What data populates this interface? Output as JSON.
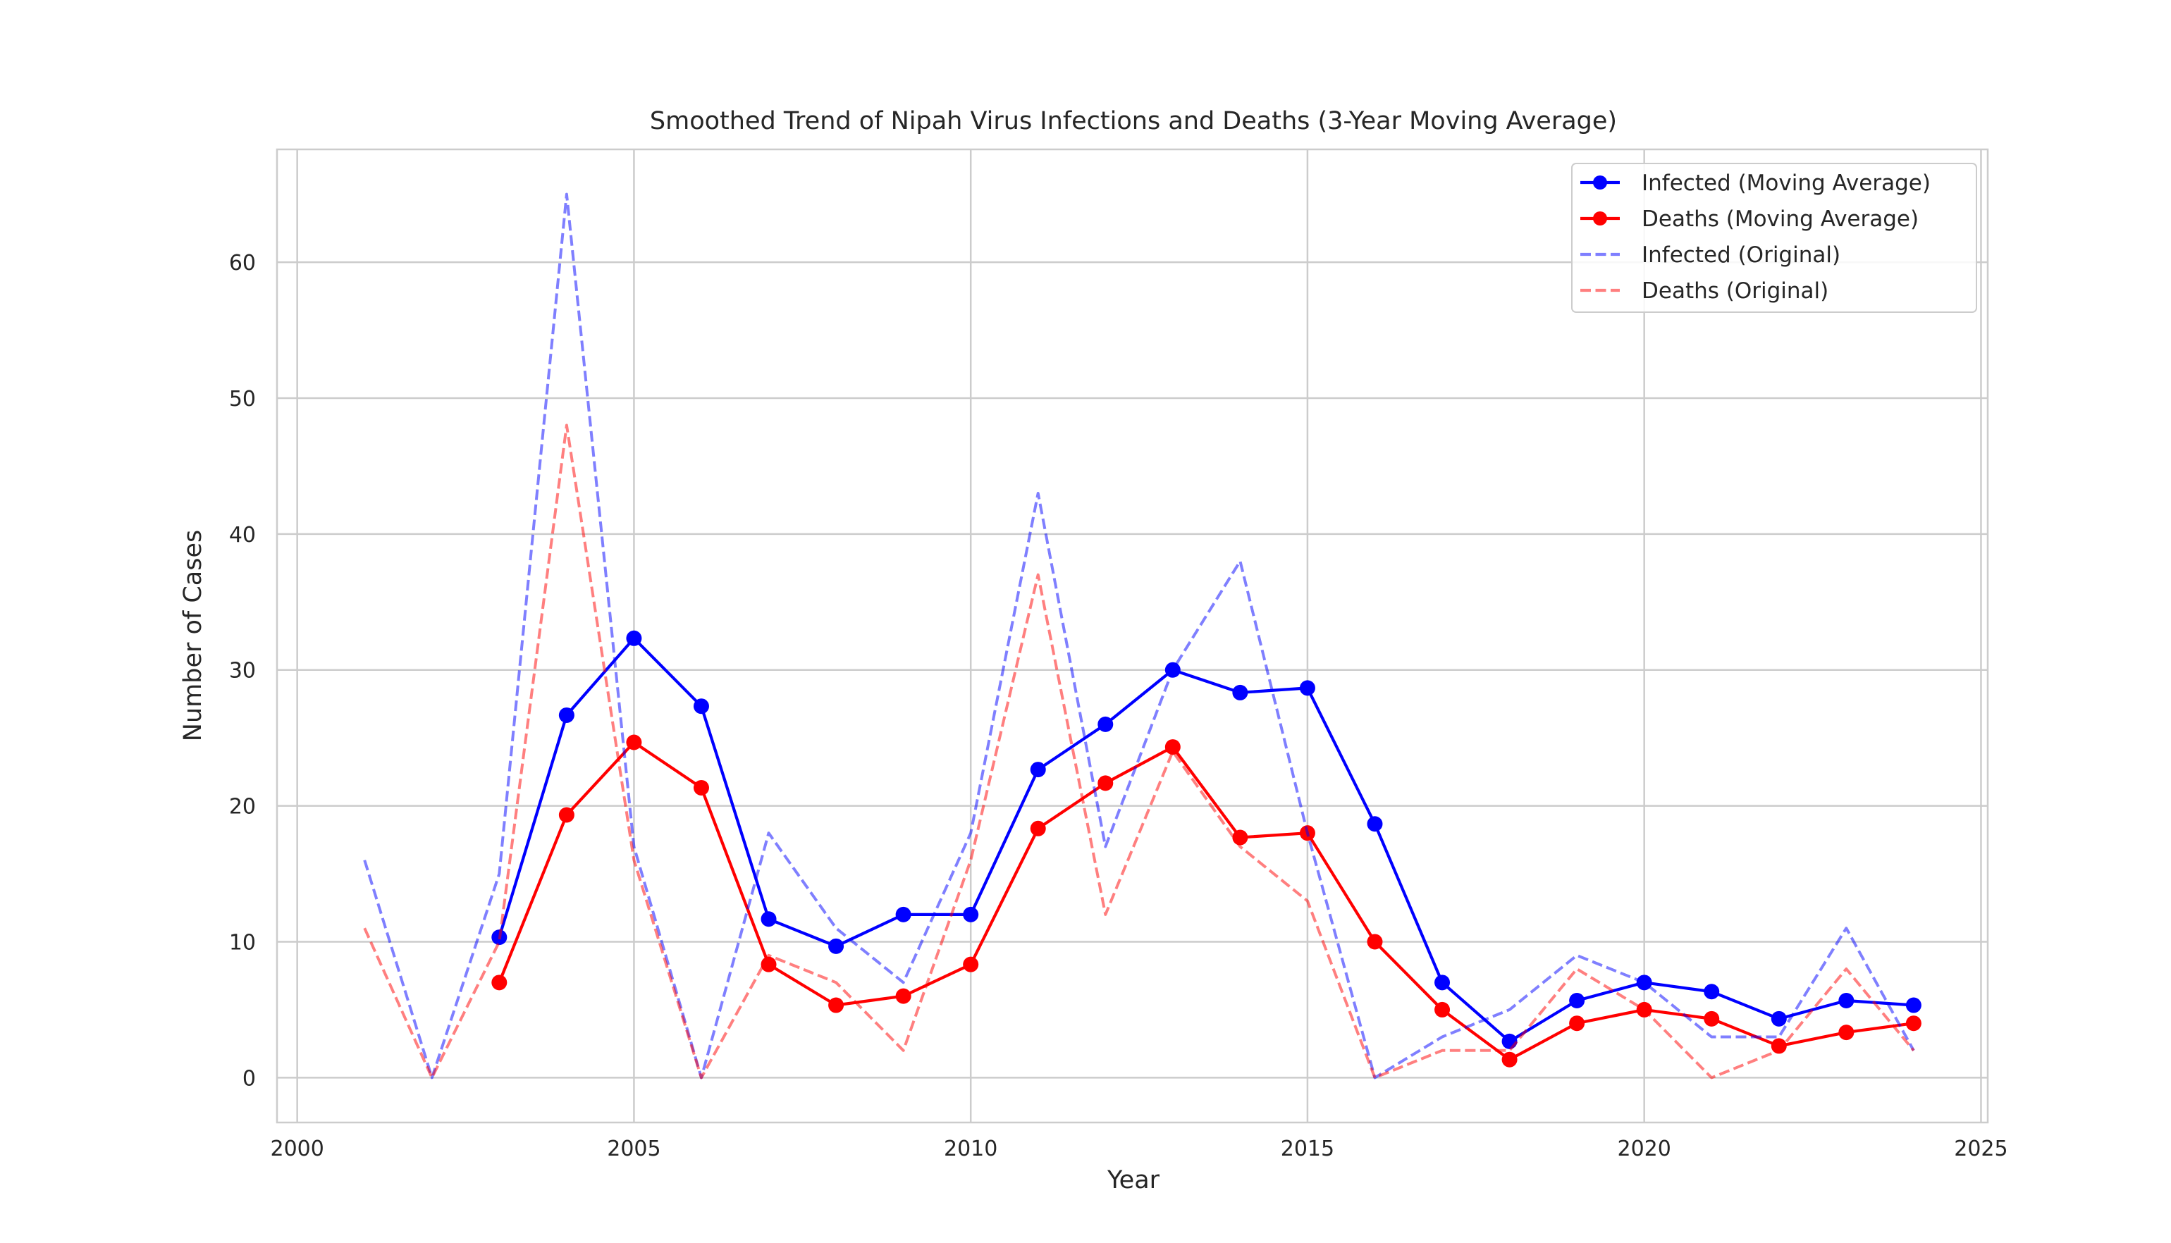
{
  "chart_data": {
    "type": "line",
    "title": "Smoothed Trend of Nipah Virus Infections and Deaths (3-Year Moving Average)",
    "xlabel": "Year",
    "ylabel": "Number of Cases",
    "xlim": [
      1999.7,
      2025.1
    ],
    "ylim": [
      -3.3,
      68.3
    ],
    "xticks": [
      2000,
      2005,
      2010,
      2015,
      2020,
      2025
    ],
    "yticks": [
      0,
      10,
      20,
      30,
      40,
      50,
      60
    ],
    "grid": true,
    "legend_position": "top-right",
    "x": [
      2001,
      2002,
      2003,
      2004,
      2005,
      2006,
      2007,
      2008,
      2009,
      2010,
      2011,
      2012,
      2013,
      2014,
      2015,
      2016,
      2017,
      2018,
      2019,
      2020,
      2021,
      2022,
      2023,
      2024
    ],
    "series": [
      {
        "name": "Infected (Moving Average)",
        "color": "#0000ff",
        "style": "solid-markers",
        "values": [
          null,
          null,
          10.33,
          26.67,
          32.33,
          27.33,
          11.67,
          9.67,
          12.0,
          12.0,
          22.67,
          26.0,
          30.0,
          28.33,
          28.67,
          18.67,
          7.0,
          2.67,
          5.67,
          7.0,
          6.33,
          4.33,
          5.67,
          5.33
        ]
      },
      {
        "name": "Deaths (Moving Average)",
        "color": "#ff0000",
        "style": "solid-markers",
        "values": [
          null,
          null,
          7.0,
          19.33,
          24.67,
          21.33,
          8.33,
          5.33,
          6.0,
          8.33,
          18.33,
          21.67,
          24.33,
          17.67,
          18.0,
          10.0,
          5.0,
          1.33,
          4.0,
          5.0,
          4.33,
          2.33,
          3.33,
          4.0
        ]
      },
      {
        "name": "Infected (Original)",
        "color": "#0000ff",
        "style": "dashed",
        "values": [
          16,
          0,
          15,
          65,
          17,
          0,
          18,
          11,
          7,
          18,
          43,
          17,
          30,
          38,
          18,
          0,
          3,
          5,
          9,
          7,
          3,
          3,
          11,
          2
        ]
      },
      {
        "name": "Deaths (Original)",
        "color": "#ff0000",
        "style": "dashed",
        "values": [
          11,
          0,
          10,
          48,
          16,
          0,
          9,
          7,
          2,
          16,
          37,
          12,
          24,
          17,
          13,
          0,
          2,
          2,
          8,
          5,
          0,
          2,
          8,
          2
        ]
      }
    ]
  }
}
